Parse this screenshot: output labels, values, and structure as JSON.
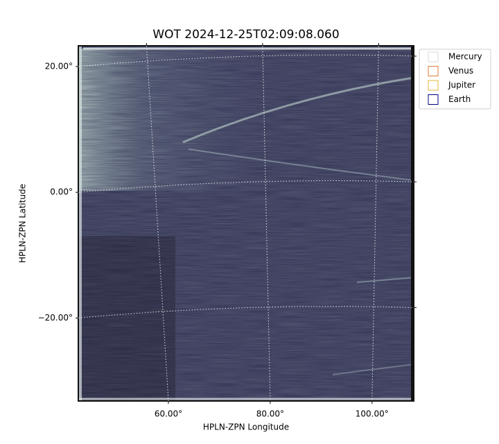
{
  "chart_data": {
    "type": "image",
    "title": "WOT 2024-12-25T02:09:08.060",
    "xlabel": "HPLN-ZPN Longitude",
    "ylabel": "HPLN-ZPN Latitude",
    "xlim": [
      42.3,
      108.2
    ],
    "ylim": [
      -33.2,
      23.3
    ],
    "xticks": [
      {
        "value": 60,
        "label": "60.00°"
      },
      {
        "value": 80,
        "label": "80.00°"
      },
      {
        "value": 100,
        "label": "100.00°"
      }
    ],
    "yticks": [
      {
        "value": -20,
        "label": "−20.00°"
      },
      {
        "value": 0,
        "label": "0.00°"
      },
      {
        "value": 20,
        "label": "20.00°"
      }
    ],
    "grid": true,
    "legend_position": "outside-upper-right",
    "legend": [
      {
        "name": "Mercury",
        "color": "#d9d9d9"
      },
      {
        "name": "Venus",
        "color": "#e07b39"
      },
      {
        "name": "Jupiter",
        "color": "#e3b53a"
      },
      {
        "name": "Earth",
        "color": "#000080"
      }
    ]
  }
}
